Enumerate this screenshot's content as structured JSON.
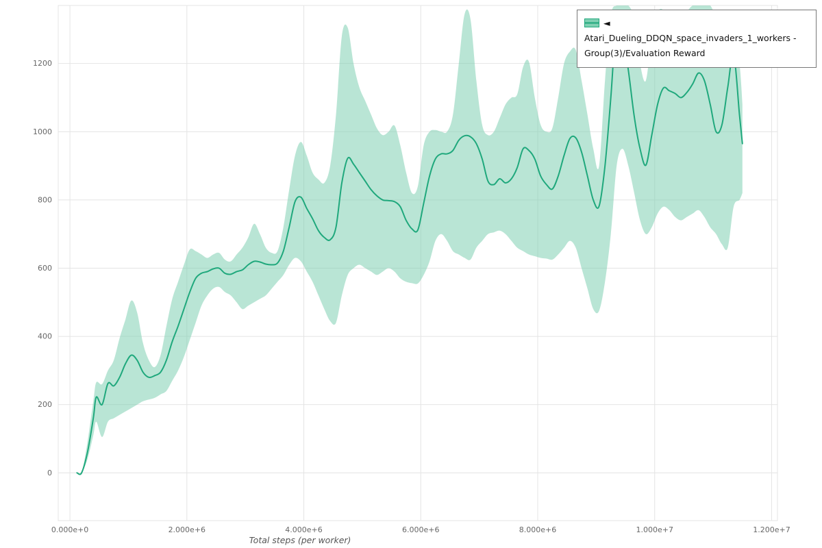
{
  "chart_data": {
    "type": "line",
    "title": "",
    "xlabel": "Total steps (per worker)",
    "ylabel": "",
    "grid": true,
    "legend_position": "top-right outside",
    "xlim": [
      -200000.0,
      12100000.0
    ],
    "ylim": [
      -140,
      1370
    ],
    "xticks": [
      0,
      2000000.0,
      4000000.0,
      6000000.0,
      8000000.0,
      10000000.0,
      12000000.0
    ],
    "xtick_labels": [
      "0.000e+0",
      "2.000e+6",
      "4.000e+6",
      "6.000e+6",
      "8.000e+6",
      "1.000e+7",
      "1.200e+7"
    ],
    "yticks": [
      0,
      200,
      400,
      600,
      800,
      1000,
      1200
    ],
    "ytick_labels": [
      "0",
      "200",
      "400",
      "600",
      "800",
      "1000",
      "1200"
    ],
    "colors": {
      "line": "#1fa87c",
      "band": "#7fd0b2",
      "band_opacity": 0.55,
      "grid": "#e4e4e4",
      "tick_text": "#666666",
      "legend_border": "#777777"
    },
    "series": [
      {
        "name": "◄ Atari_Dueling_DDQN_space_invaders_1_workers - Group(3)/Evaluation Reward",
        "x": [
          120000.0,
          200000.0,
          300000.0,
          400000.0,
          450000.0,
          550000.0,
          650000.0,
          750000.0,
          850000.0,
          950000.0,
          1050000.0,
          1150000.0,
          1250000.0,
          1350000.0,
          1450000.0,
          1550000.0,
          1650000.0,
          1750000.0,
          1850000.0,
          1950000.0,
          2050000.0,
          2150000.0,
          2250000.0,
          2350000.0,
          2450000.0,
          2550000.0,
          2650000.0,
          2750000.0,
          2850000.0,
          2950000.0,
          3050000.0,
          3150000.0,
          3250000.0,
          3350000.0,
          3450000.0,
          3550000.0,
          3650000.0,
          3750000.0,
          3850000.0,
          3950000.0,
          4050000.0,
          4150000.0,
          4250000.0,
          4350000.0,
          4450000.0,
          4550000.0,
          4650000.0,
          4750000.0,
          4850000.0,
          4950000.0,
          5050000.0,
          5150000.0,
          5250000.0,
          5350000.0,
          5450000.0,
          5550000.0,
          5650000.0,
          5750000.0,
          5850000.0,
          5950000.0,
          6050000.0,
          6150000.0,
          6250000.0,
          6350000.0,
          6450000.0,
          6550000.0,
          6650000.0,
          6750000.0,
          6850000.0,
          6950000.0,
          7050000.0,
          7150000.0,
          7250000.0,
          7350000.0,
          7450000.0,
          7550000.0,
          7650000.0,
          7750000.0,
          7850000.0,
          7950000.0,
          8050000.0,
          8150000.0,
          8250000.0,
          8350000.0,
          8450000.0,
          8550000.0,
          8650000.0,
          8750000.0,
          8850000.0,
          8950000.0,
          9050000.0,
          9150000.0,
          9250000.0,
          9350000.0,
          9450000.0,
          9550000.0,
          9650000.0,
          9750000.0,
          9850000.0,
          9950000.0,
          10050000.0,
          10150000.0,
          10250000.0,
          10350000.0,
          10450000.0,
          10550000.0,
          10650000.0,
          10750000.0,
          10850000.0,
          10950000.0,
          11050000.0,
          11150000.0,
          11250000.0,
          11350000.0,
          11450000.0,
          11500000.0
        ],
        "mean": [
          0,
          0,
          60,
          160,
          222,
          200,
          262,
          255,
          280,
          320,
          345,
          330,
          295,
          280,
          285,
          295,
          330,
          385,
          430,
          480,
          530,
          570,
          585,
          590,
          598,
          600,
          585,
          582,
          590,
          595,
          610,
          620,
          618,
          612,
          610,
          615,
          650,
          720,
          795,
          808,
          775,
          745,
          710,
          690,
          683,
          720,
          850,
          922,
          905,
          880,
          855,
          830,
          812,
          800,
          798,
          795,
          780,
          740,
          715,
          712,
          790,
          870,
          920,
          935,
          935,
          945,
          975,
          988,
          985,
          965,
          920,
          855,
          845,
          862,
          850,
          862,
          895,
          950,
          945,
          920,
          870,
          845,
          832,
          870,
          930,
          980,
          982,
          940,
          870,
          800,
          782,
          900,
          1100,
          1330,
          1290,
          1180,
          1045,
          950,
          902,
          990,
          1080,
          1128,
          1120,
          1112,
          1100,
          1115,
          1140,
          1172,
          1150,
          1080,
          1000,
          1020,
          1130,
          1228,
          1050,
          965
        ],
        "lower": [
          0,
          0,
          40,
          110,
          150,
          105,
          150,
          160,
          170,
          180,
          190,
          200,
          210,
          215,
          220,
          230,
          240,
          270,
          300,
          340,
          390,
          440,
          490,
          520,
          540,
          545,
          530,
          520,
          500,
          480,
          490,
          500,
          510,
          520,
          540,
          560,
          580,
          610,
          630,
          620,
          590,
          560,
          520,
          480,
          445,
          440,
          520,
          580,
          600,
          610,
          600,
          590,
          580,
          590,
          600,
          590,
          570,
          560,
          556,
          555,
          580,
          620,
          680,
          700,
          680,
          650,
          640,
          630,
          625,
          660,
          680,
          700,
          705,
          710,
          700,
          680,
          660,
          650,
          640,
          635,
          630,
          628,
          625,
          640,
          660,
          680,
          660,
          600,
          540,
          480,
          475,
          560,
          700,
          900,
          950,
          900,
          820,
          740,
          700,
          720,
          760,
          780,
          770,
          750,
          740,
          750,
          760,
          770,
          750,
          720,
          700,
          670,
          660,
          780,
          800,
          820
        ],
        "upper": [
          0,
          0,
          90,
          210,
          265,
          260,
          300,
          330,
          395,
          450,
          505,
          470,
          380,
          330,
          310,
          345,
          430,
          510,
          560,
          610,
          655,
          650,
          640,
          630,
          640,
          645,
          625,
          620,
          640,
          660,
          690,
          730,
          700,
          660,
          645,
          650,
          720,
          830,
          930,
          970,
          930,
          880,
          860,
          850,
          900,
          1050,
          1280,
          1305,
          1200,
          1130,
          1090,
          1050,
          1010,
          990,
          1000,
          1018,
          960,
          880,
          820,
          840,
          960,
          1000,
          1005,
          1000,
          1000,
          1050,
          1200,
          1345,
          1330,
          1150,
          1020,
          990,
          1000,
          1040,
          1080,
          1100,
          1110,
          1190,
          1205,
          1100,
          1020,
          1000,
          1010,
          1100,
          1200,
          1235,
          1240,
          1150,
          1050,
          950,
          900,
          1150,
          1340,
          1370,
          1370,
          1370,
          1330,
          1200,
          1150,
          1280,
          1350,
          1355,
          1300,
          1290,
          1310,
          1350,
          1370,
          1370,
          1370,
          1370,
          1330,
          1250,
          1200,
          1280,
          1200,
          1080
        ]
      }
    ]
  }
}
